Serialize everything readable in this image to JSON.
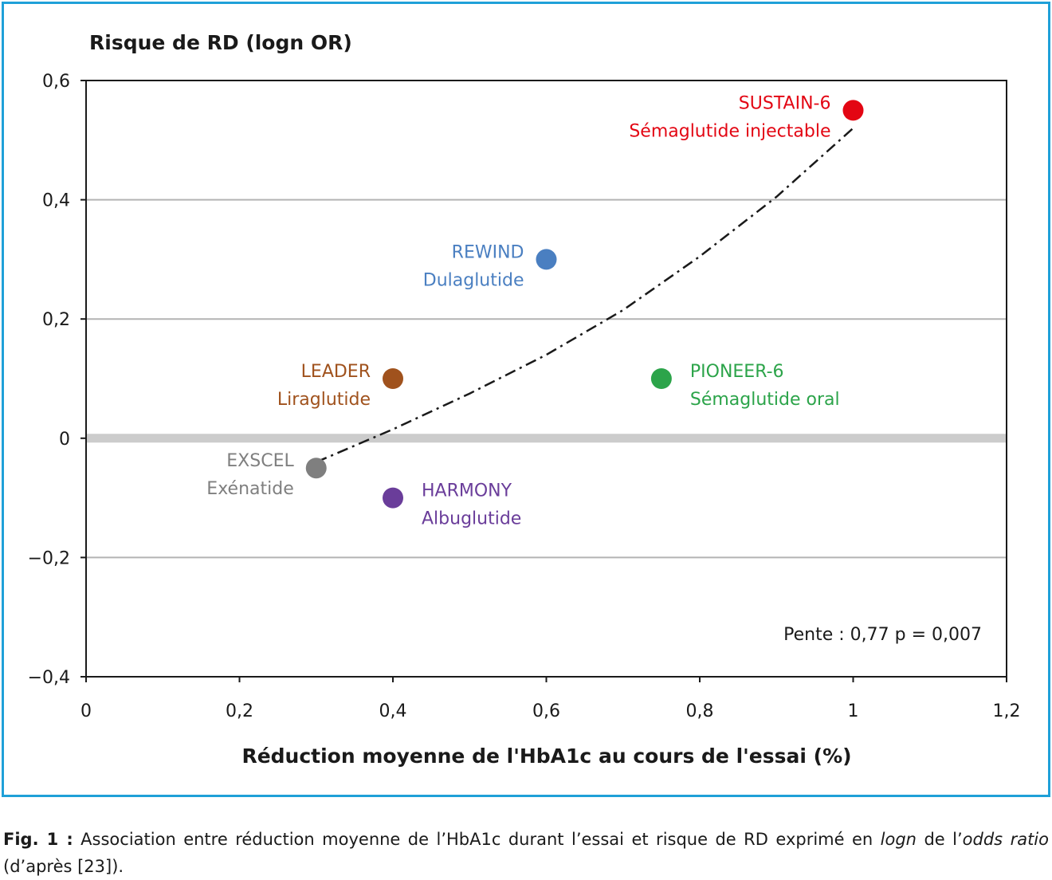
{
  "colors": {
    "frame": "#1fa0d8",
    "grid": "#b3b3b3",
    "zero_line": "#cccccc",
    "trend": "#1a1a1a"
  },
  "chart_data": {
    "type": "scatter",
    "ylabel": "Risque de RD (logn OR)",
    "xlabel": "Réduction moyenne de l'HbA1c au cours de l'essai (%)",
    "xlim": [
      0,
      1.2
    ],
    "ylim": [
      -0.4,
      0.6
    ],
    "x_ticks": [
      "0",
      "0,2",
      "0,4",
      "0,6",
      "0,8",
      "1",
      "1,2"
    ],
    "x_tick_values": [
      0,
      0.2,
      0.4,
      0.6,
      0.8,
      1.0,
      1.2
    ],
    "y_ticks": [
      "0,6",
      "0,4",
      "0,2",
      "0",
      "−0,2",
      "−0,4"
    ],
    "y_tick_values": [
      0.6,
      0.4,
      0.2,
      0,
      -0.2,
      -0.4
    ],
    "grid": "horizontal",
    "points": [
      {
        "trial": "SUSTAIN-6",
        "drug": "Sémaglutide injectable",
        "x": 1.0,
        "y": 0.55,
        "color": "#e30613",
        "label_side": "left"
      },
      {
        "trial": "REWIND",
        "drug": "Dulaglutide",
        "x": 0.6,
        "y": 0.3,
        "color": "#4a7fc1",
        "label_side": "left"
      },
      {
        "trial": "LEADER",
        "drug": "Liraglutide",
        "x": 0.4,
        "y": 0.1,
        "color": "#a0521d",
        "label_side": "left"
      },
      {
        "trial": "PIONEER-6",
        "drug": "Sémaglutide oral",
        "x": 0.75,
        "y": 0.1,
        "color": "#2ca44a",
        "label_side": "right"
      },
      {
        "trial": "EXSCEL",
        "drug": "Exénatide",
        "x": 0.3,
        "y": -0.05,
        "color": "#7f7f7f",
        "label_side": "left"
      },
      {
        "trial": "HARMONY",
        "drug": "Albuglutide",
        "x": 0.4,
        "y": -0.1,
        "color": "#6a3d9a",
        "label_side": "right"
      }
    ],
    "trendline": {
      "style": "dash-dot",
      "x": [
        0.3,
        0.4,
        0.5,
        0.6,
        0.7,
        0.8,
        0.9,
        1.0
      ],
      "y": [
        -0.04,
        0.015,
        0.075,
        0.14,
        0.215,
        0.305,
        0.405,
        0.52
      ]
    },
    "annotation": "Pente : 0,77 p = 0,007"
  },
  "caption": {
    "label": "Fig. 1 :",
    "text_1": " Association entre réduction moyenne de l’HbA1c durant l’essai et risque de RD exprimé en ",
    "italic_1": "logn",
    "text_2": " de l’",
    "italic_2": "odds ratio",
    "text_3": " (d’après [23])."
  }
}
